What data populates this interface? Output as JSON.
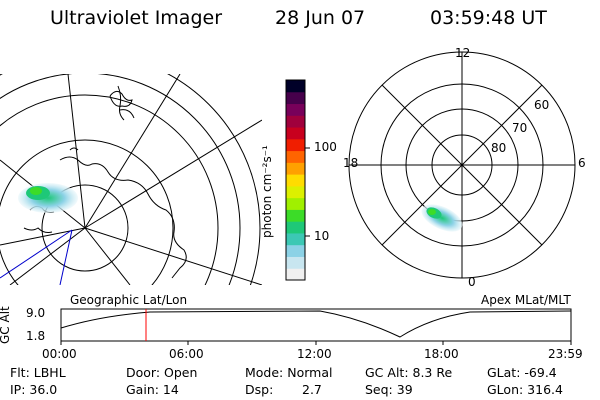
{
  "header": {
    "instrument": "Ultraviolet Imager",
    "date": "28 Jun 07",
    "time": "03:59:48 UT"
  },
  "colorbar": {
    "unit_label": "photon cm⁻²s⁻¹",
    "ticks": [
      "100",
      "10"
    ],
    "scale": "log",
    "colors": [
      "#f0f0f0",
      "#c8e6f0",
      "#8cd2e6",
      "#3cc8b4",
      "#1ec878",
      "#3cdc28",
      "#a0f000",
      "#dcf000",
      "#ffdc00",
      "#ffa000",
      "#ff6400",
      "#f01e00",
      "#c8001e",
      "#a0003c",
      "#78005a",
      "#46004b",
      "#000028"
    ]
  },
  "geo_map": {
    "caption": "Geographic Lat/Lon"
  },
  "apex_map": {
    "caption": "Apex MLat/MLT",
    "mlt_labels": {
      "top": "12",
      "left": "18",
      "right": "6",
      "bottom": "0"
    },
    "mlat_labels": [
      "60",
      "70",
      "80"
    ]
  },
  "altitude_plot": {
    "ylabel": "GC Alt",
    "yticks": [
      "9.0",
      "1.8"
    ],
    "xticks": [
      "00:00",
      "06:00",
      "12:00",
      "18:00",
      "23:59"
    ],
    "current_time_marker_color": "#ff0000"
  },
  "info": {
    "flt": "Flt: LBHL",
    "ip": "IP: 36.0",
    "door": "Door: Open",
    "gain": "Gain: 14",
    "mode": "Mode: Normal",
    "dsp_label": "Dsp:",
    "dsp_value": "2.7",
    "gc_alt": "GC Alt: 8.3 Re",
    "seq": "Seq: 39",
    "glat": "GLat: -69.4",
    "glon": "GLon: 316.4"
  }
}
